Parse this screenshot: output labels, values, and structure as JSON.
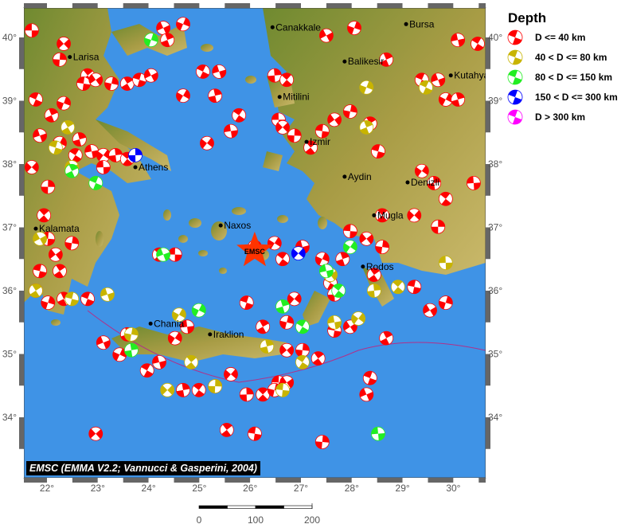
{
  "map": {
    "lon_range": [
      21.55,
      30.64
    ],
    "lat_range": [
      33.04,
      40.47
    ],
    "lon_ticks": [
      "22°",
      "23°",
      "24°",
      "25°",
      "26°",
      "27°",
      "28°",
      "29°",
      "30°"
    ],
    "lat_ticks": [
      "40°",
      "39°",
      "38°",
      "37°",
      "36°",
      "35°",
      "34°"
    ],
    "colors": {
      "sea": "#3f93e6",
      "land": "#a09840",
      "lowland": "#5f7d2c"
    },
    "epicenter": {
      "label": "EMSC",
      "lon": 26.09,
      "lat": 36.63,
      "color": "#ff3300"
    },
    "cities": [
      {
        "name": "Canakkale",
        "lon": 26.44,
        "lat": 40.16
      },
      {
        "name": "Bursa",
        "lon": 29.07,
        "lat": 40.21
      },
      {
        "name": "Larisa",
        "lon": 22.45,
        "lat": 39.69
      },
      {
        "name": "Balikesir",
        "lon": 27.86,
        "lat": 39.62
      },
      {
        "name": "Kutahya",
        "lon": 29.95,
        "lat": 39.4
      },
      {
        "name": "Mitilini",
        "lon": 26.58,
        "lat": 39.06
      },
      {
        "name": "Izmir",
        "lon": 27.11,
        "lat": 38.35
      },
      {
        "name": "Athens",
        "lon": 23.74,
        "lat": 37.95
      },
      {
        "name": "Aydin",
        "lon": 27.86,
        "lat": 37.8
      },
      {
        "name": "Denizli",
        "lon": 29.1,
        "lat": 37.71
      },
      {
        "name": "Kalamata",
        "lon": 21.78,
        "lat": 36.98
      },
      {
        "name": "Naxos",
        "lon": 25.42,
        "lat": 37.03
      },
      {
        "name": "Mugla",
        "lon": 28.44,
        "lat": 37.19
      },
      {
        "name": "Rodos",
        "lon": 28.22,
        "lat": 36.38
      },
      {
        "name": "Chania",
        "lon": 24.04,
        "lat": 35.48
      },
      {
        "name": "Iraklion",
        "lon": 25.21,
        "lat": 35.31
      }
    ],
    "events": [
      [
        21.7,
        40.11,
        0
      ],
      [
        22.33,
        39.9,
        0
      ],
      [
        22.25,
        39.65,
        0
      ],
      [
        22.8,
        39.4,
        0
      ],
      [
        22.72,
        39.27,
        0
      ],
      [
        22.96,
        39.33,
        0
      ],
      [
        23.27,
        39.27,
        0
      ],
      [
        23.58,
        39.27,
        0
      ],
      [
        23.82,
        39.33,
        0
      ],
      [
        24.05,
        39.4,
        0
      ],
      [
        22.33,
        38.96,
        0
      ],
      [
        22.09,
        38.77,
        0
      ],
      [
        21.78,
        39.02,
        0
      ],
      [
        21.86,
        38.45,
        0
      ],
      [
        22.25,
        38.33,
        0
      ],
      [
        22.64,
        38.39,
        0
      ],
      [
        22.56,
        38.14,
        0
      ],
      [
        22.88,
        38.2,
        0
      ],
      [
        23.11,
        38.14,
        0
      ],
      [
        23.35,
        38.14,
        0
      ],
      [
        23.58,
        38.08,
        0
      ],
      [
        23.11,
        37.95,
        0
      ],
      [
        21.7,
        37.95,
        0
      ],
      [
        22.02,
        37.64,
        0
      ],
      [
        21.94,
        37.19,
        0
      ],
      [
        22.02,
        36.82,
        0
      ],
      [
        22.17,
        36.57,
        0
      ],
      [
        22.49,
        36.75,
        0
      ],
      [
        22.25,
        36.31,
        0
      ],
      [
        21.86,
        36.31,
        0
      ],
      [
        21.78,
        36.0,
        0
      ],
      [
        22.02,
        35.81,
        0
      ],
      [
        22.33,
        35.87,
        0
      ],
      [
        22.8,
        35.87,
        0
      ],
      [
        23.11,
        35.18,
        0
      ],
      [
        23.43,
        34.99,
        0
      ],
      [
        23.58,
        35.31,
        0
      ],
      [
        23.97,
        34.74,
        0
      ],
      [
        24.21,
        34.87,
        0
      ],
      [
        24.52,
        35.25,
        0
      ],
      [
        24.68,
        34.43,
        0
      ],
      [
        24.99,
        34.43,
        0
      ],
      [
        25.31,
        34.49,
        0
      ],
      [
        25.62,
        34.68,
        0
      ],
      [
        25.93,
        34.36,
        0
      ],
      [
        26.25,
        34.36,
        0
      ],
      [
        26.56,
        34.55,
        0
      ],
      [
        26.72,
        35.06,
        0
      ],
      [
        27.03,
        35.06,
        0
      ],
      [
        27.34,
        34.93,
        0
      ],
      [
        27.66,
        35.37,
        0
      ],
      [
        27.97,
        35.43,
        0
      ],
      [
        26.72,
        35.5,
        0
      ],
      [
        26.25,
        35.43,
        0
      ],
      [
        25.93,
        35.81,
        0
      ],
      [
        24.29,
        40.15,
        0
      ],
      [
        24.68,
        40.21,
        0
      ],
      [
        24.37,
        39.96,
        0
      ],
      [
        25.07,
        39.46,
        0
      ],
      [
        25.39,
        39.46,
        0
      ],
      [
        24.68,
        39.08,
        0
      ],
      [
        25.31,
        39.08,
        0
      ],
      [
        25.78,
        38.77,
        0
      ],
      [
        25.62,
        38.52,
        0
      ],
      [
        25.15,
        38.33,
        0
      ],
      [
        26.48,
        39.4,
        0
      ],
      [
        26.72,
        39.33,
        0
      ],
      [
        26.56,
        38.7,
        0
      ],
      [
        26.64,
        38.58,
        0
      ],
      [
        26.87,
        38.45,
        0
      ],
      [
        27.19,
        38.26,
        0
      ],
      [
        27.42,
        38.52,
        0
      ],
      [
        27.66,
        38.7,
        0
      ],
      [
        27.97,
        38.83,
        0
      ],
      [
        28.36,
        38.64,
        0
      ],
      [
        28.52,
        38.2,
        0
      ],
      [
        27.5,
        40.03,
        0
      ],
      [
        28.05,
        40.15,
        0
      ],
      [
        28.68,
        39.65,
        0
      ],
      [
        29.38,
        39.33,
        0
      ],
      [
        29.7,
        39.33,
        0
      ],
      [
        29.85,
        39.02,
        0
      ],
      [
        30.09,
        39.02,
        0
      ],
      [
        30.48,
        39.9,
        0
      ],
      [
        30.09,
        39.96,
        0
      ],
      [
        29.38,
        37.89,
        0
      ],
      [
        29.62,
        37.7,
        0
      ],
      [
        29.85,
        37.45,
        0
      ],
      [
        30.4,
        37.7,
        0
      ],
      [
        29.23,
        37.19,
        0
      ],
      [
        29.7,
        37.01,
        0
      ],
      [
        28.6,
        37.19,
        0
      ],
      [
        27.97,
        36.94,
        0
      ],
      [
        28.29,
        36.82,
        0
      ],
      [
        28.6,
        36.69,
        0
      ],
      [
        28.44,
        36.25,
        0
      ],
      [
        29.23,
        36.06,
        0
      ],
      [
        29.54,
        35.69,
        0
      ],
      [
        29.85,
        35.81,
        0
      ],
      [
        28.68,
        35.25,
        0
      ],
      [
        28.36,
        34.62,
        0
      ],
      [
        28.29,
        34.36,
        0
      ],
      [
        27.42,
        36.5,
        0
      ],
      [
        27.82,
        36.5,
        0
      ],
      [
        27.58,
        36.12,
        0
      ],
      [
        27.03,
        36.69,
        0
      ],
      [
        26.48,
        36.75,
        0
      ],
      [
        26.09,
        36.69,
        0
      ],
      [
        26.64,
        36.5,
        0
      ],
      [
        24.76,
        35.43,
        0
      ],
      [
        26.87,
        35.87,
        0
      ],
      [
        27.66,
        35.94,
        0
      ],
      [
        24.21,
        36.57,
        0
      ],
      [
        24.52,
        36.57,
        0
      ],
      [
        22.96,
        33.74,
        0
      ],
      [
        27.42,
        33.61,
        0
      ],
      [
        25.54,
        33.8,
        0
      ],
      [
        26.09,
        33.74,
        0
      ],
      [
        26.72,
        34.55,
        0
      ],
      [
        26.48,
        34.43,
        0
      ],
      [
        22.41,
        38.58,
        1
      ],
      [
        22.17,
        38.26,
        1
      ],
      [
        22.49,
        37.95,
        1
      ],
      [
        28.29,
        39.21,
        1
      ],
      [
        28.29,
        38.58,
        1
      ],
      [
        29.46,
        39.21,
        1
      ],
      [
        23.19,
        35.94,
        1
      ],
      [
        24.6,
        35.62,
        1
      ],
      [
        26.33,
        35.12,
        1
      ],
      [
        27.03,
        34.87,
        1
      ],
      [
        27.66,
        35.5,
        1
      ],
      [
        28.13,
        35.56,
        1
      ],
      [
        28.44,
        36.0,
        1
      ],
      [
        28.91,
        36.06,
        1
      ],
      [
        29.85,
        36.44,
        1
      ],
      [
        24.37,
        34.43,
        1
      ],
      [
        25.31,
        34.49,
        1
      ],
      [
        24.84,
        34.87,
        1
      ],
      [
        26.64,
        34.43,
        1
      ],
      [
        27.58,
        36.25,
        1
      ],
      [
        23.66,
        35.31,
        1
      ],
      [
        21.78,
        36.0,
        1
      ],
      [
        22.49,
        35.87,
        1
      ],
      [
        21.86,
        36.82,
        1
      ],
      [
        24.05,
        39.96,
        2
      ],
      [
        22.49,
        37.89,
        2
      ],
      [
        22.96,
        37.7,
        2
      ],
      [
        24.29,
        36.57,
        2
      ],
      [
        24.99,
        35.69,
        2
      ],
      [
        26.64,
        35.75,
        2
      ],
      [
        27.03,
        35.43,
        2
      ],
      [
        27.5,
        36.31,
        2
      ],
      [
        27.97,
        36.69,
        2
      ],
      [
        23.66,
        35.06,
        2
      ],
      [
        27.74,
        36.0,
        2
      ],
      [
        28.52,
        33.74,
        2
      ],
      [
        26.95,
        36.59,
        3
      ],
      [
        23.74,
        38.14,
        3
      ]
    ]
  },
  "legend": {
    "title": "Depth",
    "items": [
      {
        "label": "D <= 40 km",
        "color": "#ff0000"
      },
      {
        "label": "40 < D <= 80 km",
        "color": "#c8b400"
      },
      {
        "label": "80 < D <= 150 km",
        "color": "#22ee22"
      },
      {
        "label": "150 < D <= 300 km",
        "color": "#0000ff"
      },
      {
        "label": "D > 300 km",
        "color": "#ff00ff"
      }
    ]
  },
  "attribution": "EMSC (EMMA V2.2; Vannucci & Gasperini, 2004)",
  "scalebar": {
    "labels": [
      "0",
      "100",
      "200"
    ],
    "unit_km": 200
  }
}
